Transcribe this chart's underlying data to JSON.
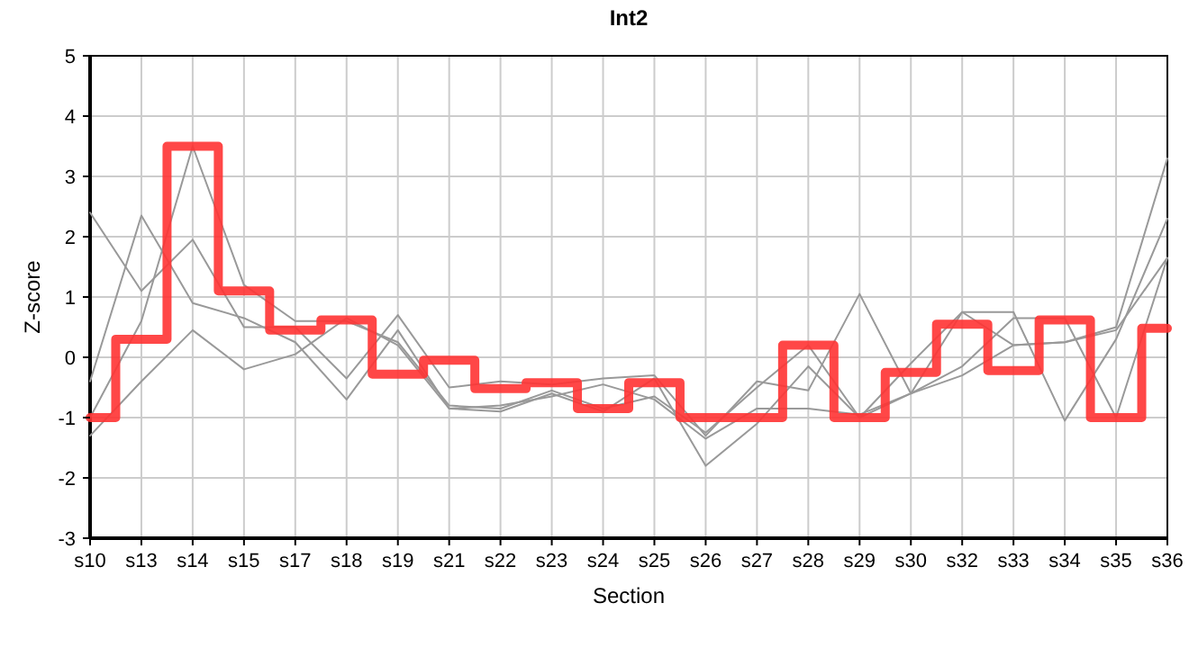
{
  "chart_data": {
    "type": "line",
    "title": "Int2",
    "xlabel": "Section",
    "ylabel": "Z-score",
    "categories": [
      "s10",
      "s13",
      "s14",
      "s15",
      "s17",
      "s18",
      "s19",
      "s21",
      "s22",
      "s23",
      "s24",
      "s25",
      "s26",
      "s27",
      "s28",
      "s29",
      "s30",
      "s32",
      "s33",
      "s34",
      "s35",
      "s36"
    ],
    "ylim": [
      -3,
      5
    ],
    "yticks": [
      -3,
      -2,
      -1,
      0,
      1,
      2,
      3,
      4,
      5
    ],
    "grid": true,
    "marker": "none",
    "line_style": "solid",
    "series": [
      {
        "color": "#999999",
        "values": [
          2.4,
          1.1,
          1.95,
          0.5,
          0.5,
          -0.35,
          0.7,
          -0.5,
          -0.4,
          -0.45,
          -0.35,
          -0.3,
          -1.3,
          -0.4,
          -0.55,
          1.05,
          -0.6,
          0.75,
          0.2,
          0.25,
          0.5,
          3.3
        ]
      },
      {
        "color": "#999999",
        "values": [
          -0.4,
          2.35,
          0.9,
          0.65,
          0.25,
          -0.7,
          0.45,
          -0.85,
          -0.9,
          -0.6,
          -0.9,
          -0.35,
          -1.8,
          -1.1,
          -0.15,
          -1.0,
          -0.6,
          -0.15,
          0.65,
          0.65,
          -1.0,
          1.65
        ]
      },
      {
        "color": "#999999",
        "values": [
          -1.0,
          0.6,
          3.5,
          1.2,
          0.6,
          0.6,
          0.25,
          -0.8,
          -0.85,
          -0.55,
          -0.85,
          -0.65,
          -1.25,
          -0.5,
          0.2,
          -1.0,
          -0.1,
          0.75,
          0.75,
          -1.05,
          0.3,
          2.3
        ]
      },
      {
        "color": "#999999",
        "values": [
          -1.3,
          -0.4,
          0.45,
          -0.2,
          0.05,
          0.65,
          0.2,
          -0.85,
          -0.8,
          -0.65,
          -0.45,
          -0.7,
          -1.35,
          -0.85,
          -0.85,
          -0.95,
          -0.6,
          -0.3,
          0.2,
          0.25,
          0.45,
          1.65
        ]
      },
      {
        "type": "step",
        "color": "#ff3333",
        "values": [
          -1,
          0.3,
          3.5,
          1.1,
          0.45,
          0.62,
          -0.28,
          -0.05,
          -0.52,
          -0.42,
          -0.85,
          -0.42,
          -1,
          -1,
          0.2,
          -1,
          -0.25,
          0.55,
          -0.22,
          0.62,
          -1,
          0.48
        ]
      }
    ]
  }
}
